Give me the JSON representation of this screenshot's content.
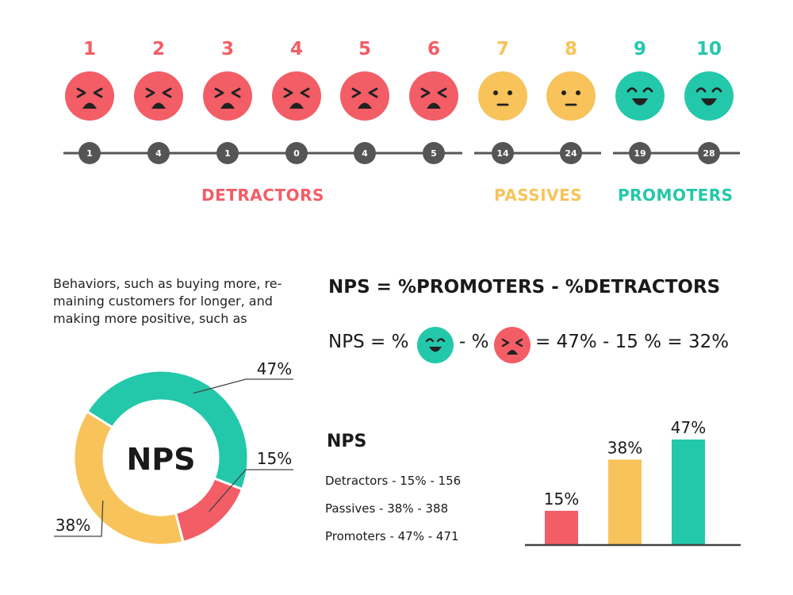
{
  "colors": {
    "detractor": "#f35d66",
    "passive": "#f7c35a",
    "promoter": "#23c8aa",
    "axis": "#555555",
    "text": "#1a1a1a"
  },
  "scale": {
    "items": [
      {
        "score": "1",
        "count": "1",
        "mood": "angry"
      },
      {
        "score": "2",
        "count": "4",
        "mood": "angry"
      },
      {
        "score": "3",
        "count": "1",
        "mood": "angry"
      },
      {
        "score": "4",
        "count": "0",
        "mood": "angry"
      },
      {
        "score": "5",
        "count": "4",
        "mood": "angry"
      },
      {
        "score": "6",
        "count": "5",
        "mood": "angry"
      },
      {
        "score": "7",
        "count": "14",
        "mood": "neutral"
      },
      {
        "score": "8",
        "count": "24",
        "mood": "neutral"
      },
      {
        "score": "9",
        "count": "19",
        "mood": "happy"
      },
      {
        "score": "10",
        "count": "28",
        "mood": "happy"
      }
    ],
    "groups": {
      "detractors": "DETRACTORS",
      "passives": "PASSIVES",
      "promoters": "PROMOTERS"
    }
  },
  "description": "Behaviors, such as buying more, re-maining customers for longer, and making more positive, such as",
  "formula": {
    "title": "NPS = %PROMOTERS - %DETRACTORS",
    "part1": "NPS = %",
    "part2": "- %",
    "part3": "= 47% - 15 % = 32%"
  },
  "stats": {
    "heading": "NPS",
    "lines": [
      "Detractors - 15% - 156",
      "Passives - 38% - 388",
      "Promoters - 47% - 471"
    ]
  },
  "chart_data": [
    {
      "type": "pie",
      "center_label": "NPS",
      "categories": [
        "Promoters",
        "Detractors",
        "Passives"
      ],
      "values": [
        47,
        15,
        38
      ],
      "labels": [
        "47%",
        "15%",
        "38%"
      ]
    },
    {
      "type": "bar",
      "categories": [
        "Detractors",
        "Passives",
        "Promoters"
      ],
      "values": [
        15,
        38,
        47
      ],
      "labels": [
        "15%",
        "38%",
        "47%"
      ]
    }
  ]
}
